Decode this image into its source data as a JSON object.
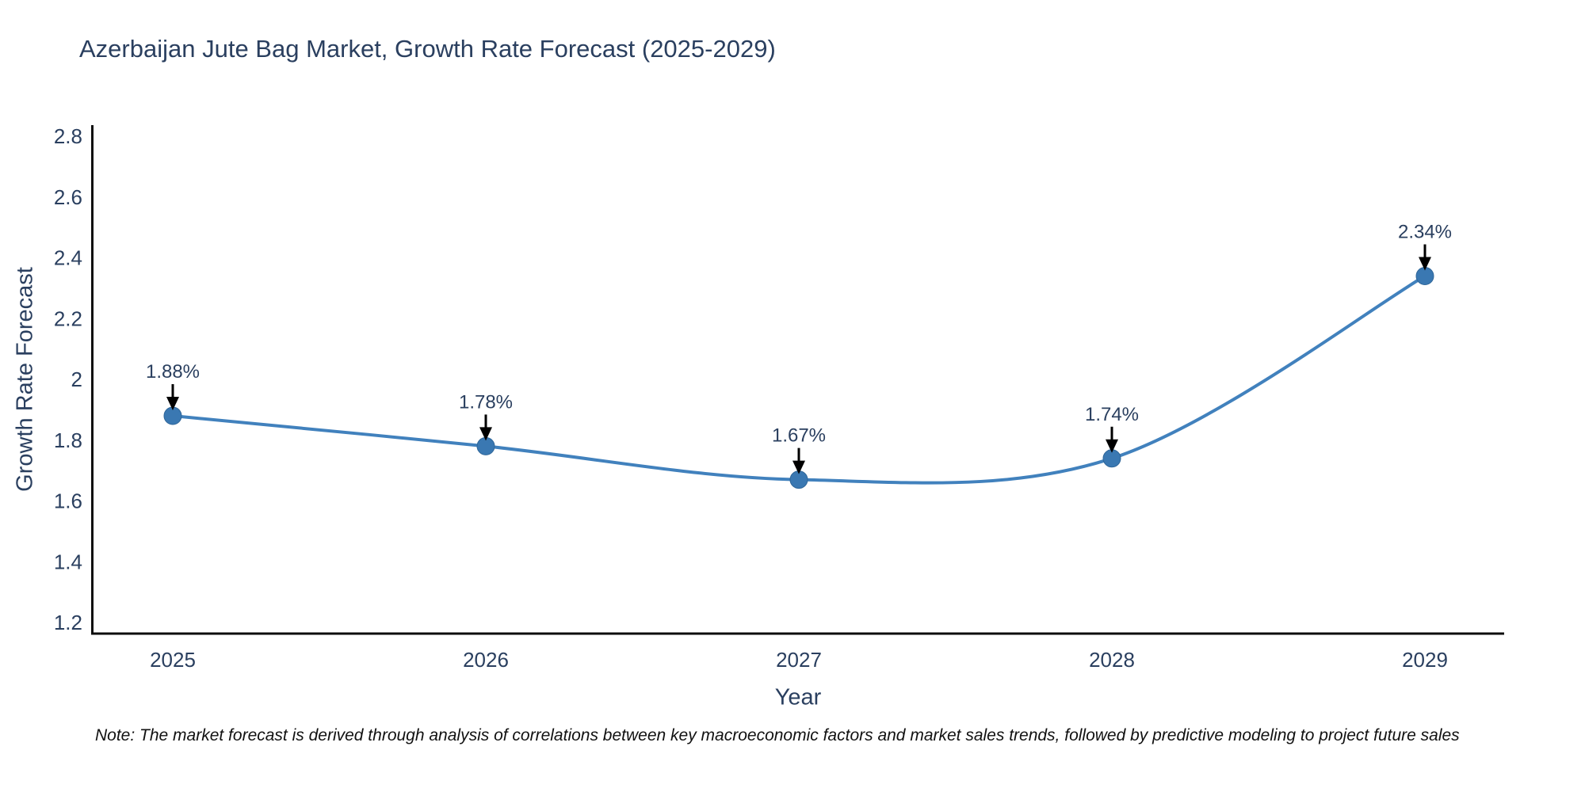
{
  "chart_data": {
    "type": "line",
    "title": "Azerbaijan Jute Bag Market, Growth Rate Forecast (2025-2029)",
    "xlabel": "Year",
    "ylabel": "Growth Rate Forecast",
    "x": [
      "2025",
      "2026",
      "2027",
      "2028",
      "2029"
    ],
    "values": [
      1.88,
      1.78,
      1.67,
      1.74,
      2.34
    ],
    "point_labels": [
      "1.88%",
      "1.78%",
      "1.67%",
      "1.74%",
      "2.34%"
    ],
    "ytick_labels": [
      "2.8",
      "2.6",
      "2.4",
      "2.2",
      "2",
      "1.8",
      "1.6",
      "1.4",
      "1.2"
    ],
    "ytick_values": [
      2.8,
      2.6,
      2.4,
      2.2,
      2.0,
      1.8,
      1.6,
      1.4,
      1.2
    ],
    "ylim": [
      1.2,
      2.8
    ],
    "grid": false,
    "legend": "none",
    "line_shape": "spline",
    "annotation_style": "down-arrow",
    "colors": {
      "line": "#4181bd",
      "marker": "#3a78b2",
      "marker_edge": "#2f6699",
      "text": "#2a3f5f",
      "axis": "#0d0d0d",
      "arrow": "#000000"
    },
    "note": "Note: The market forecast is derived through analysis of correlations between key macroeconomic factors and market sales trends, followed by predictive modeling to project future sales"
  }
}
